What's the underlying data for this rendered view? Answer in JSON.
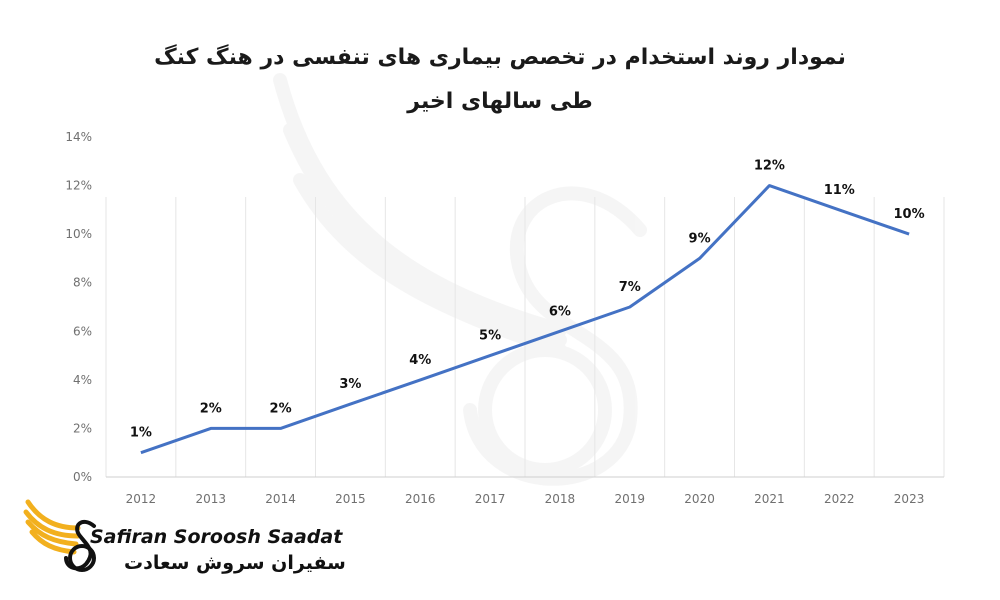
{
  "chart_data": {
    "type": "line",
    "title": "نمودار روند استخدام در تخصص بیماری های تنفسی در هنگ کنگ طی سالهای اخیر",
    "categories": [
      "2012",
      "2013",
      "2014",
      "2015",
      "2016",
      "2017",
      "2018",
      "2019",
      "2020",
      "2021",
      "2022",
      "2023"
    ],
    "values": [
      1,
      2,
      2,
      3,
      4,
      5,
      6,
      7,
      9,
      12,
      11,
      10
    ],
    "data_labels": [
      "1%",
      "2%",
      "2%",
      "3%",
      "4%",
      "5%",
      "6%",
      "7%",
      "9%",
      "12%",
      "11%",
      "10%"
    ],
    "y_ticks": [
      "0%",
      "2%",
      "4%",
      "6%",
      "8%",
      "10%",
      "12%",
      "14%"
    ],
    "ylim": [
      0,
      14
    ],
    "grid": "vertical",
    "legend": "none",
    "line_color": "#4472C4"
  },
  "branding": {
    "name_en": "Safiran Soroosh Saadat",
    "name_fa": "سفیران سروش سعادت",
    "accent_color": "#F2B01E"
  }
}
